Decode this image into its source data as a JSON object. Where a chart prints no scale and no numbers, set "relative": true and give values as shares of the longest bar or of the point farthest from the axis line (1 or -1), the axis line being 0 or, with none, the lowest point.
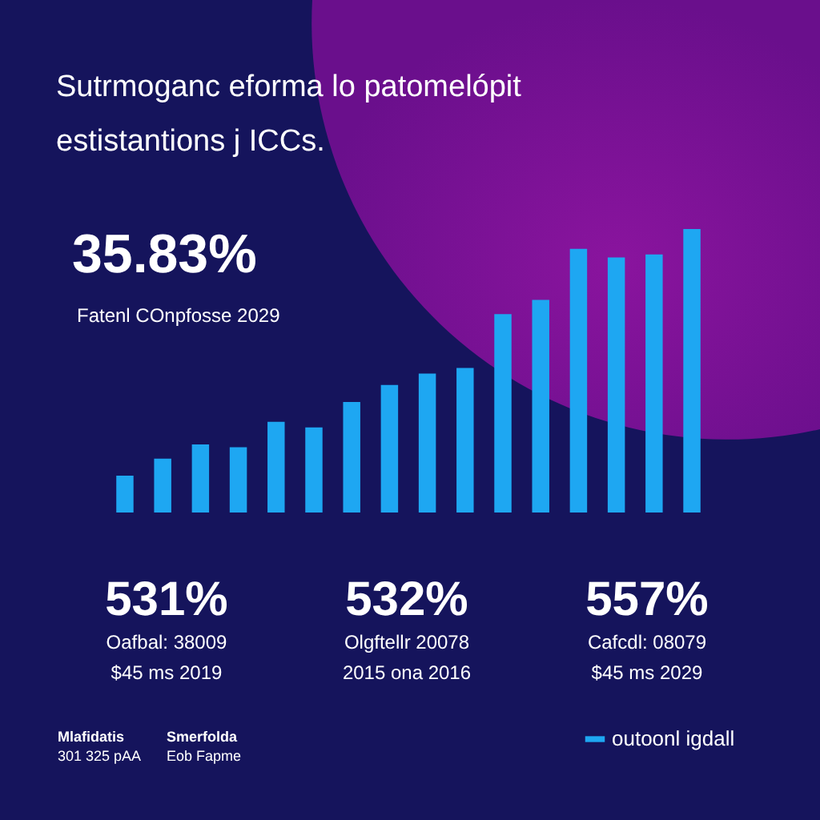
{
  "chart_data": {
    "type": "bar",
    "title": "Sutrmoganc eforma lo patomelópit estistantions j ICCs.",
    "relative": true,
    "categories": [
      null,
      null,
      null,
      null,
      null,
      null,
      null,
      null,
      null,
      null,
      null,
      null,
      null,
      null,
      null,
      null
    ],
    "series": [
      {
        "name": "outoonl igdall",
        "color": "#1ea7f2",
        "values": [
          0.13,
          0.19,
          0.24,
          0.23,
          0.32,
          0.3,
          0.39,
          0.45,
          0.49,
          0.51,
          0.7,
          0.75,
          0.93,
          0.9,
          0.91,
          1
        ]
      }
    ],
    "legend": "bottom right",
    "annotations": [
      "35.83%",
      "Fatenl COnpfosse 2029",
      "531%",
      "Oafbal: 38009",
      "$45 ms 2019",
      "532%",
      "Olgftellr 20078",
      "2015 ona 2016",
      "557%",
      "Cafcdl: 08079",
      "$45 ms 2029",
      "Mlafidatis",
      "301 325 pAA",
      "Smerfolda",
      "Eob Fapme"
    ]
  }
}
